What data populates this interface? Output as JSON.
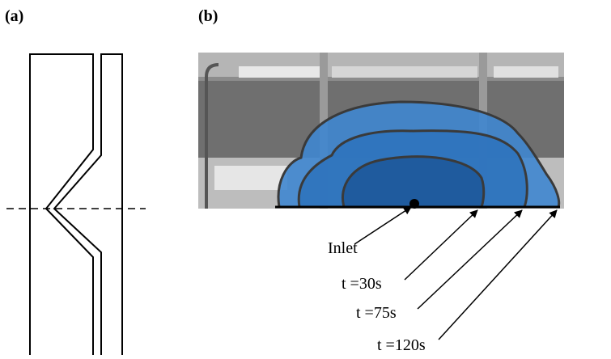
{
  "panel_a": {
    "label": "(a)"
  },
  "panel_b": {
    "label": "(b)",
    "annotations": [
      "Inlet",
      "t =30s",
      "t =75s",
      "t =120s"
    ]
  }
}
